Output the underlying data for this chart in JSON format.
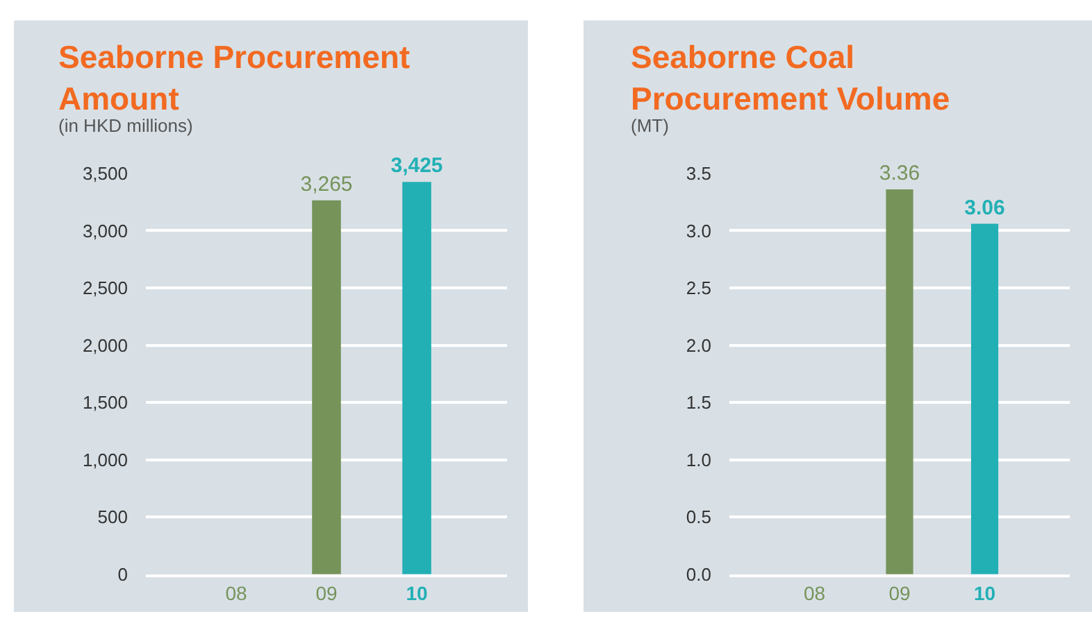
{
  "chart_data": [
    {
      "type": "bar",
      "title": "Seaborne Procurement Amount",
      "subtitle": "(in HKD millions)",
      "categories": [
        "08",
        "09",
        "10"
      ],
      "values": [
        null,
        3265,
        3425
      ],
      "colors": [
        "#76935a",
        "#76935a",
        "#22b0b5"
      ],
      "value_labels": [
        null,
        "3,265",
        "3,425"
      ],
      "ylim": [
        0,
        3500
      ],
      "yticks": [
        0,
        500,
        {
          "value": 1000,
          "label": "1,000"
        },
        {
          "value": 1500,
          "label": "1,500"
        },
        {
          "value": 2000,
          "label": "2,000"
        },
        {
          "value": 2500,
          "label": "2,500"
        },
        {
          "value": 3000,
          "label": "3,000"
        },
        {
          "value": 3500,
          "label": "3,500"
        }
      ],
      "grid": "y"
    },
    {
      "type": "bar",
      "title": "Seaborne Coal Procurement Volume",
      "subtitle": "(MT)",
      "categories": [
        "08",
        "09",
        "10"
      ],
      "values": [
        null,
        3.36,
        3.06
      ],
      "colors": [
        "#76935a",
        "#76935a",
        "#22b0b5"
      ],
      "value_labels": [
        null,
        "3.36",
        "3.06"
      ],
      "ylim": [
        0,
        3.5
      ],
      "yticks": [
        {
          "value": 0,
          "label": "0.0"
        },
        0.5,
        {
          "value": 1,
          "label": "1.0"
        },
        1.5,
        {
          "value": 2,
          "label": "2.0"
        },
        2.5,
        {
          "value": 3,
          "label": "3.0"
        },
        3.5
      ],
      "grid": "y"
    }
  ]
}
